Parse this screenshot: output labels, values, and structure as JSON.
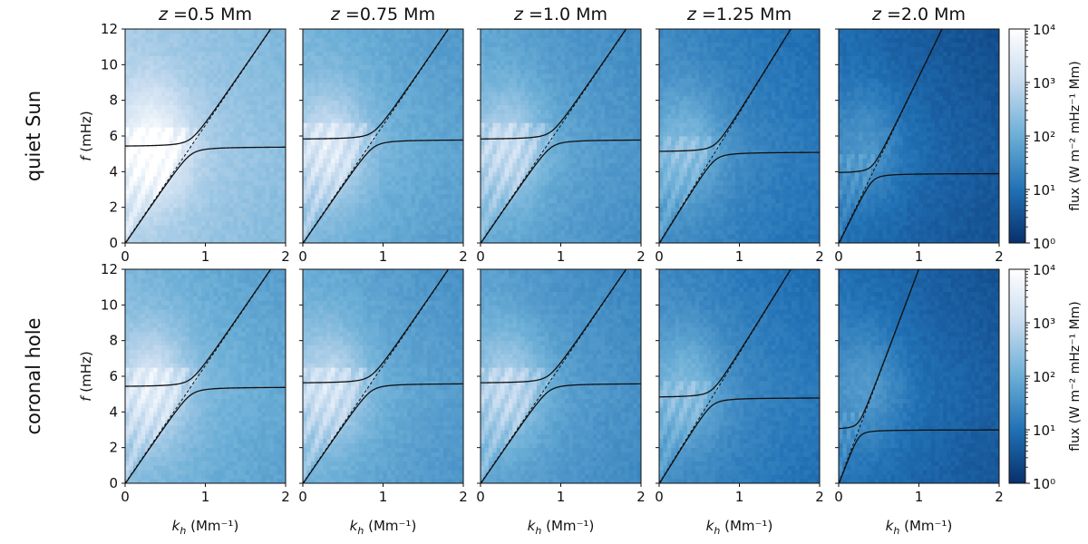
{
  "chart_data": {
    "type": "heatmap",
    "description_title": "",
    "columns": [
      "z =0.5 Mm",
      "z =0.75 Mm",
      "z =1.0 Mm",
      "z =1.25 Mm",
      "z =2.0 Mm"
    ],
    "column_heights_Mm": [
      0.5,
      0.75,
      1.0,
      1.25,
      2.0
    ],
    "rows": [
      "quiet Sun",
      "coronal hole"
    ],
    "xlabel": "k_h (Mm⁻¹)",
    "ylabel": "f (mHz)",
    "xlim": [
      0,
      2
    ],
    "ylim": [
      0,
      12
    ],
    "xticks": [
      "0",
      "1",
      "2"
    ],
    "yticks": [
      "0",
      "2",
      "4",
      "6",
      "8",
      "10",
      "12"
    ],
    "colorbar": {
      "label": "flux (W m⁻² mHz⁻¹ Mm)",
      "scale": "log",
      "range": [
        1,
        10000
      ],
      "tick_labels": [
        "10⁰",
        "10¹",
        "10²",
        "10³",
        "10⁴"
      ],
      "low_color": "#08306b",
      "high_color": "#ffffff"
    },
    "panels": [
      {
        "row": "quiet Sun",
        "column": "z =0.5 Mm",
        "acoustic_cutoff_mHz": 5.4,
        "fmode_slope_mHz_per_Mm_inv": 6.6,
        "bg_level": 0.72
      },
      {
        "row": "quiet Sun",
        "column": "z =0.75 Mm",
        "acoustic_cutoff_mHz": 5.8,
        "fmode_slope_mHz_per_Mm_inv": 6.6,
        "bg_level": 0.58
      },
      {
        "row": "quiet Sun",
        "column": "z =1.0 Mm",
        "acoustic_cutoff_mHz": 5.8,
        "fmode_slope_mHz_per_Mm_inv": 6.6,
        "bg_level": 0.52
      },
      {
        "row": "quiet Sun",
        "column": "z =1.25 Mm",
        "acoustic_cutoff_mHz": 5.1,
        "fmode_slope_mHz_per_Mm_inv": 7.3,
        "bg_level": 0.4
      },
      {
        "row": "quiet Sun",
        "column": "z =2.0 Mm",
        "acoustic_cutoff_mHz": 3.9,
        "fmode_slope_mHz_per_Mm_inv": 9.3,
        "bg_level": 0.28
      },
      {
        "row": "coronal hole",
        "column": "z =0.5 Mm",
        "acoustic_cutoff_mHz": 5.4,
        "fmode_slope_mHz_per_Mm_inv": 6.6,
        "bg_level": 0.6
      },
      {
        "row": "coronal hole",
        "column": "z =0.75 Mm",
        "acoustic_cutoff_mHz": 5.6,
        "fmode_slope_mHz_per_Mm_inv": 6.6,
        "bg_level": 0.55
      },
      {
        "row": "coronal hole",
        "column": "z =1.0 Mm",
        "acoustic_cutoff_mHz": 5.6,
        "fmode_slope_mHz_per_Mm_inv": 6.6,
        "bg_level": 0.5
      },
      {
        "row": "coronal hole",
        "column": "z =1.25 Mm",
        "acoustic_cutoff_mHz": 4.8,
        "fmode_slope_mHz_per_Mm_inv": 7.3,
        "bg_level": 0.4
      },
      {
        "row": "coronal hole",
        "column": "z =2.0 Mm",
        "acoustic_cutoff_mHz": 3.0,
        "fmode_slope_mHz_per_Mm_inv": 12.0,
        "bg_level": 0.3
      }
    ]
  }
}
